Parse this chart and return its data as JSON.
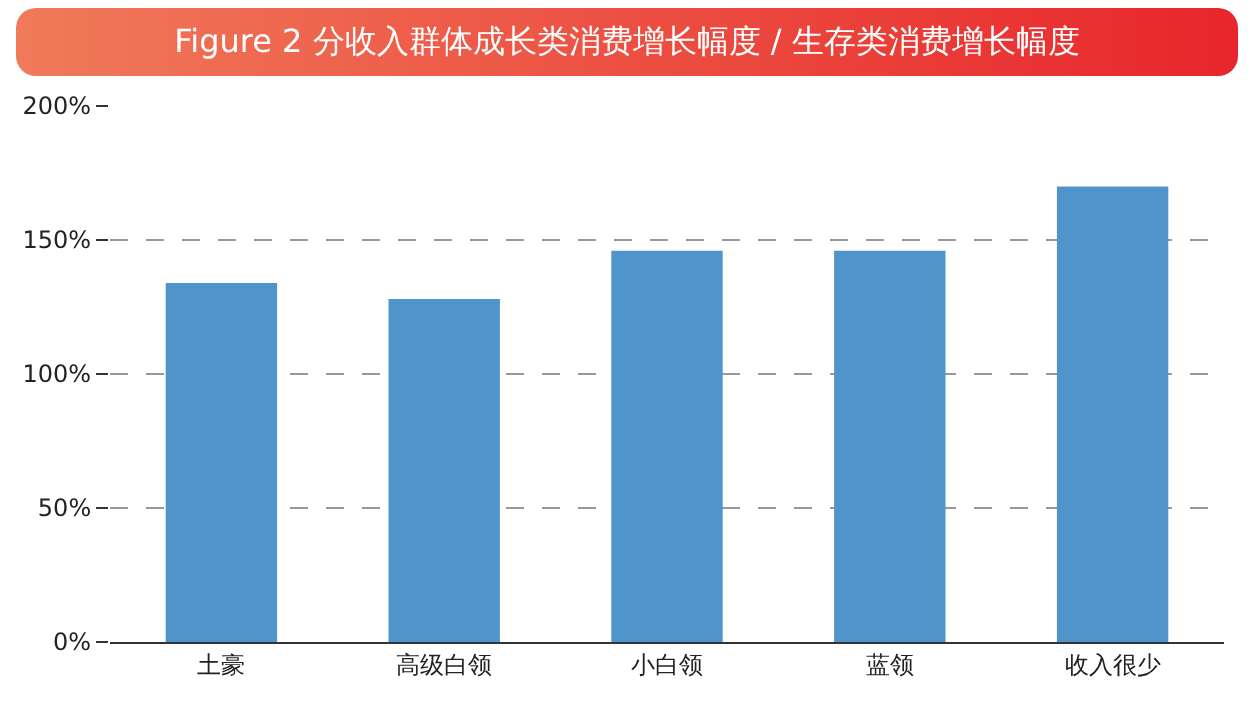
{
  "chart_data": {
    "type": "bar",
    "title": "Figure 2 分收入群体成长类消费增长幅度 / 生存类消费增长幅度",
    "categories": [
      "土豪",
      "高级白领",
      "小白领",
      "蓝领",
      "收入很少"
    ],
    "values": [
      134,
      128,
      146,
      146,
      170
    ],
    "color": "#4f94cb",
    "ylim": [
      0,
      200
    ],
    "yticks": [
      {
        "value": 0,
        "label": "0%"
      },
      {
        "value": 50,
        "label": "50%"
      },
      {
        "value": 100,
        "label": "100%"
      },
      {
        "value": 150,
        "label": "150%"
      },
      {
        "value": 200,
        "label": "200%"
      }
    ],
    "grid": "y"
  }
}
